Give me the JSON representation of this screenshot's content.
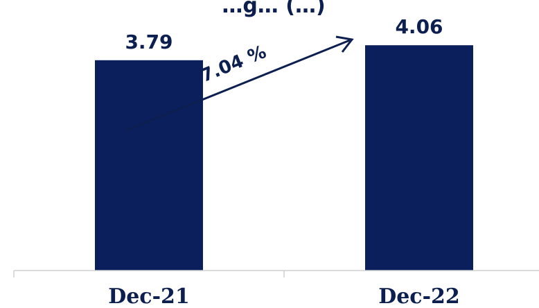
{
  "chart_data": {
    "type": "bar",
    "title": "…g… (…)",
    "categories": [
      "Dec-21",
      "Dec-22"
    ],
    "values": [
      3.79,
      4.06
    ],
    "value_labels": [
      "3.79",
      "4.06"
    ],
    "growth_annotation": "7.04 %",
    "ylim": [
      0,
      4.5
    ],
    "grid": false,
    "legend": "none",
    "colors": {
      "bar": "#0a1f5c",
      "text": "#0d1f4f",
      "axis": "#d0d0d0"
    }
  }
}
